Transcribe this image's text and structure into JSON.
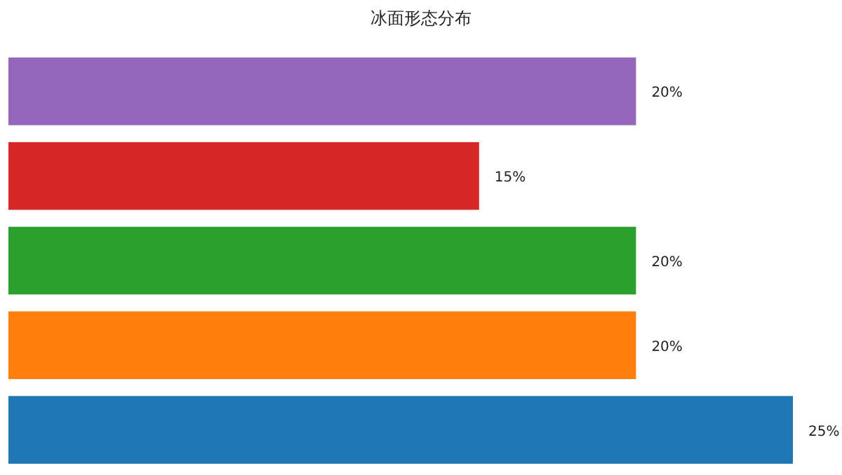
{
  "chart_data": {
    "type": "bar",
    "orientation": "horizontal",
    "title": "冰面形态分布",
    "categories": [
      null,
      null,
      null,
      null,
      null
    ],
    "values": [
      20,
      15,
      20,
      20,
      25
    ],
    "value_labels": [
      "20%",
      "15%",
      "20%",
      "20%",
      "25%"
    ],
    "colors": [
      "#9467bd",
      "#d62728",
      "#2ca02c",
      "#ff7f0e",
      "#1f77b4"
    ]
  }
}
